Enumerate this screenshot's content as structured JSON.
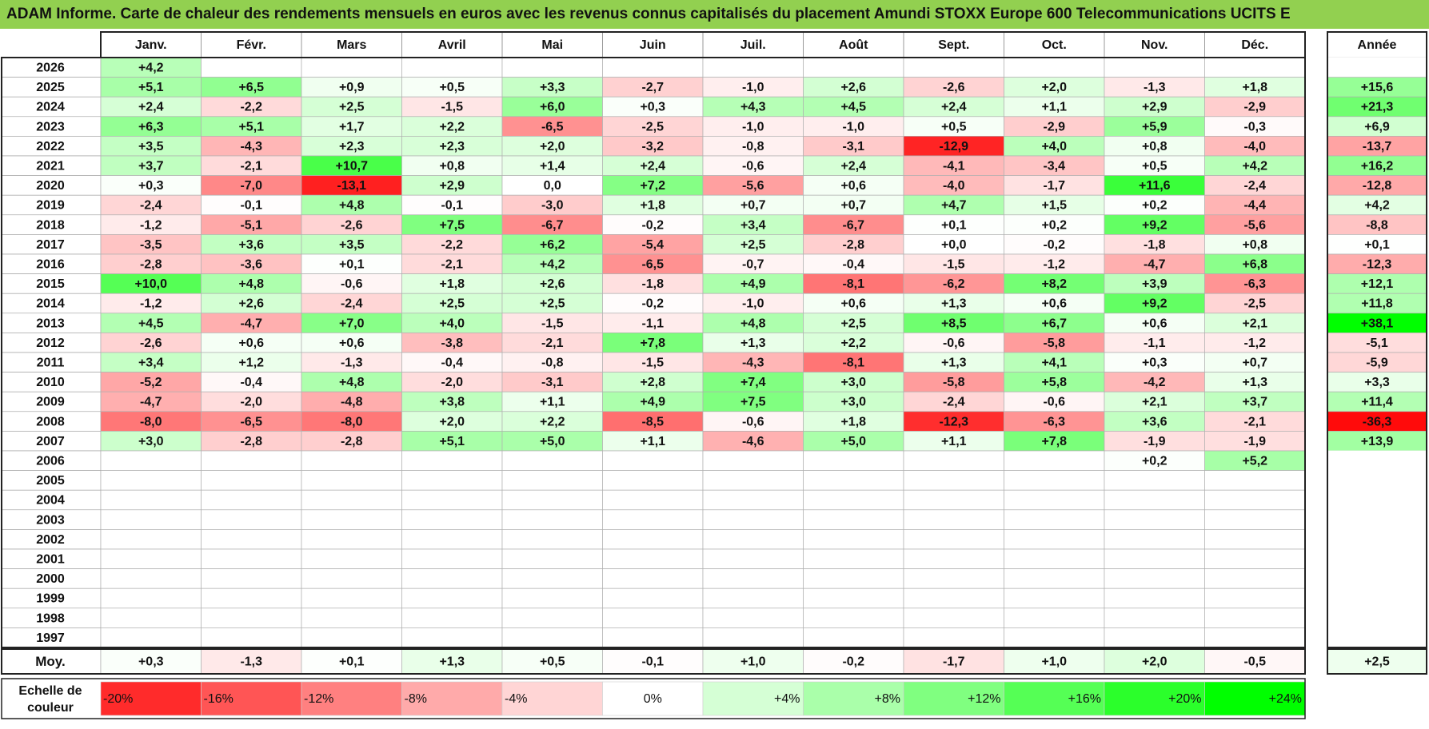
{
  "title": "ADAM Informe. Carte de chaleur des rendements mensuels en euros avec les revenus connus capitalisés du placement Amundi STOXX Europe 600 Telecommunications UCITS E",
  "chart_data": {
    "type": "heatmap",
    "title": "ADAM Informe. Carte de chaleur des rendements mensuels en euros avec les revenus connus capitalisés du placement Amundi STOXX Europe 600 Telecommunications UCITS E",
    "months": [
      "Janv.",
      "Févr.",
      "Mars",
      "Avril",
      "Mai",
      "Juin",
      "Juil.",
      "Août",
      "Sept.",
      "Oct.",
      "Nov.",
      "Déc."
    ],
    "year_header": "Année",
    "rows": [
      {
        "year": "2026",
        "values": [
          "+4,2",
          "",
          "",
          "",
          "",
          "",
          "",
          "",
          "",
          "",
          "",
          ""
        ],
        "annual": ""
      },
      {
        "year": "2025",
        "values": [
          "+5,1",
          "+6,5",
          "+0,9",
          "+0,5",
          "+3,3",
          "-2,7",
          "-1,0",
          "+2,6",
          "-2,6",
          "+2,0",
          "-1,3",
          "+1,8"
        ],
        "annual": "+15,6"
      },
      {
        "year": "2024",
        "values": [
          "+2,4",
          "-2,2",
          "+2,5",
          "-1,5",
          "+6,0",
          "+0,3",
          "+4,3",
          "+4,5",
          "+2,4",
          "+1,1",
          "+2,9",
          "-2,9"
        ],
        "annual": "+21,3"
      },
      {
        "year": "2023",
        "values": [
          "+6,3",
          "+5,1",
          "+1,7",
          "+2,2",
          "-6,5",
          "-2,5",
          "-1,0",
          "-1,0",
          "+0,5",
          "-2,9",
          "+5,9",
          "-0,3"
        ],
        "annual": "+6,9"
      },
      {
        "year": "2022",
        "values": [
          "+3,5",
          "-4,3",
          "+2,3",
          "+2,3",
          "+2,0",
          "-3,2",
          "-0,8",
          "-3,1",
          "-12,9",
          "+4,0",
          "+0,8",
          "-4,0"
        ],
        "annual": "-13,7"
      },
      {
        "year": "2021",
        "values": [
          "+3,7",
          "-2,1",
          "+10,7",
          "+0,8",
          "+1,4",
          "+2,4",
          "-0,6",
          "+2,4",
          "-4,1",
          "-3,4",
          "+0,5",
          "+4,2"
        ],
        "annual": "+16,2"
      },
      {
        "year": "2020",
        "values": [
          "+0,3",
          "-7,0",
          "-13,1",
          "+2,9",
          "0,0",
          "+7,2",
          "-5,6",
          "+0,6",
          "-4,0",
          "-1,7",
          "+11,6",
          "-2,4"
        ],
        "annual": "-12,8"
      },
      {
        "year": "2019",
        "values": [
          "-2,4",
          "-0,1",
          "+4,8",
          "-0,1",
          "-3,0",
          "+1,8",
          "+0,7",
          "+0,7",
          "+4,7",
          "+1,5",
          "+0,2",
          "-4,4"
        ],
        "annual": "+4,2"
      },
      {
        "year": "2018",
        "values": [
          "-1,2",
          "-5,1",
          "-2,6",
          "+7,5",
          "-6,7",
          "-0,2",
          "+3,4",
          "-6,7",
          "+0,1",
          "+0,2",
          "+9,2",
          "-5,6"
        ],
        "annual": "-8,8"
      },
      {
        "year": "2017",
        "values": [
          "-3,5",
          "+3,6",
          "+3,5",
          "-2,2",
          "+6,2",
          "-5,4",
          "+2,5",
          "-2,8",
          "+0,0",
          "-0,2",
          "-1,8",
          "+0,8"
        ],
        "annual": "+0,1"
      },
      {
        "year": "2016",
        "values": [
          "-2,8",
          "-3,6",
          "+0,1",
          "-2,1",
          "+4,2",
          "-6,5",
          "-0,7",
          "-0,4",
          "-1,5",
          "-1,2",
          "-4,7",
          "+6,8"
        ],
        "annual": "-12,3"
      },
      {
        "year": "2015",
        "values": [
          "+10,0",
          "+4,8",
          "-0,6",
          "+1,8",
          "+2,6",
          "-1,8",
          "+4,9",
          "-8,1",
          "-6,2",
          "+8,2",
          "+3,9",
          "-6,3"
        ],
        "annual": "+12,1"
      },
      {
        "year": "2014",
        "values": [
          "-1,2",
          "+2,6",
          "-2,4",
          "+2,5",
          "+2,5",
          "-0,2",
          "-1,0",
          "+0,6",
          "+1,3",
          "+0,6",
          "+9,2",
          "-2,5"
        ],
        "annual": "+11,8"
      },
      {
        "year": "2013",
        "values": [
          "+4,5",
          "-4,7",
          "+7,0",
          "+4,0",
          "-1,5",
          "-1,1",
          "+4,8",
          "+2,5",
          "+8,5",
          "+6,7",
          "+0,6",
          "+2,1"
        ],
        "annual": "+38,1"
      },
      {
        "year": "2012",
        "values": [
          "-2,6",
          "+0,6",
          "+0,6",
          "-3,8",
          "-2,1",
          "+7,8",
          "+1,3",
          "+2,2",
          "-0,6",
          "-5,8",
          "-1,1",
          "-1,2"
        ],
        "annual": "-5,1"
      },
      {
        "year": "2011",
        "values": [
          "+3,4",
          "+1,2",
          "-1,3",
          "-0,4",
          "-0,8",
          "-1,5",
          "-4,3",
          "-8,1",
          "+1,3",
          "+4,1",
          "+0,3",
          "+0,7"
        ],
        "annual": "-5,9"
      },
      {
        "year": "2010",
        "values": [
          "-5,2",
          "-0,4",
          "+4,8",
          "-2,0",
          "-3,1",
          "+2,8",
          "+7,4",
          "+3,0",
          "-5,8",
          "+5,8",
          "-4,2",
          "+1,3"
        ],
        "annual": "+3,3"
      },
      {
        "year": "2009",
        "values": [
          "-4,7",
          "-2,0",
          "-4,8",
          "+3,8",
          "+1,1",
          "+4,9",
          "+7,5",
          "+3,0",
          "-2,4",
          "-0,6",
          "+2,1",
          "+3,7"
        ],
        "annual": "+11,4"
      },
      {
        "year": "2008",
        "values": [
          "-8,0",
          "-6,5",
          "-8,0",
          "+2,0",
          "+2,2",
          "-8,5",
          "-0,6",
          "+1,8",
          "-12,3",
          "-6,3",
          "+3,6",
          "-2,1"
        ],
        "annual": "-36,3"
      },
      {
        "year": "2007",
        "values": [
          "+3,0",
          "-2,8",
          "-2,8",
          "+5,1",
          "+5,0",
          "+1,1",
          "-4,6",
          "+5,0",
          "+1,1",
          "+7,8",
          "-1,9",
          "-1,9"
        ],
        "annual": "+13,9"
      },
      {
        "year": "2006",
        "values": [
          "",
          "",
          "",
          "",
          "",
          "",
          "",
          "",
          "",
          "",
          "+0,2",
          "+5,2"
        ],
        "annual": ""
      },
      {
        "year": "2005",
        "values": [
          "",
          "",
          "",
          "",
          "",
          "",
          "",
          "",
          "",
          "",
          "",
          ""
        ],
        "annual": ""
      },
      {
        "year": "2004",
        "values": [
          "",
          "",
          "",
          "",
          "",
          "",
          "",
          "",
          "",
          "",
          "",
          ""
        ],
        "annual": ""
      },
      {
        "year": "2003",
        "values": [
          "",
          "",
          "",
          "",
          "",
          "",
          "",
          "",
          "",
          "",
          "",
          ""
        ],
        "annual": ""
      },
      {
        "year": "2002",
        "values": [
          "",
          "",
          "",
          "",
          "",
          "",
          "",
          "",
          "",
          "",
          "",
          ""
        ],
        "annual": ""
      },
      {
        "year": "2001",
        "values": [
          "",
          "",
          "",
          "",
          "",
          "",
          "",
          "",
          "",
          "",
          "",
          ""
        ],
        "annual": ""
      },
      {
        "year": "2000",
        "values": [
          "",
          "",
          "",
          "",
          "",
          "",
          "",
          "",
          "",
          "",
          "",
          ""
        ],
        "annual": ""
      },
      {
        "year": "1999",
        "values": [
          "",
          "",
          "",
          "",
          "",
          "",
          "",
          "",
          "",
          "",
          "",
          ""
        ],
        "annual": ""
      },
      {
        "year": "1998",
        "values": [
          "",
          "",
          "",
          "",
          "",
          "",
          "",
          "",
          "",
          "",
          "",
          ""
        ],
        "annual": ""
      },
      {
        "year": "1997",
        "values": [
          "",
          "",
          "",
          "",
          "",
          "",
          "",
          "",
          "",
          "",
          "",
          ""
        ],
        "annual": ""
      }
    ],
    "average": {
      "label": "Moy.",
      "values": [
        "+0,3",
        "-1,3",
        "+0,1",
        "+1,3",
        "+0,5",
        "-0,1",
        "+1,0",
        "-0,2",
        "-1,7",
        "+1,0",
        "+2,0",
        "-0,5"
      ],
      "annual": "+2,5"
    },
    "scale": {
      "label_line1": "Echelle de",
      "label_line2": "couleur",
      "labels": [
        "-20%",
        "-16%",
        "-12%",
        "-8%",
        "-4%",
        "0%",
        "+4%",
        "+8%",
        "+12%",
        "+16%",
        "+20%",
        "+24%"
      ],
      "values": [
        -20,
        -16,
        -12,
        -8,
        -4,
        0,
        4,
        8,
        12,
        16,
        20,
        24
      ]
    },
    "colors": {
      "title_bar": "#92d050",
      "negative_max": "#ff0000",
      "neutral": "#ffffff",
      "positive_max": "#00ff00"
    }
  }
}
